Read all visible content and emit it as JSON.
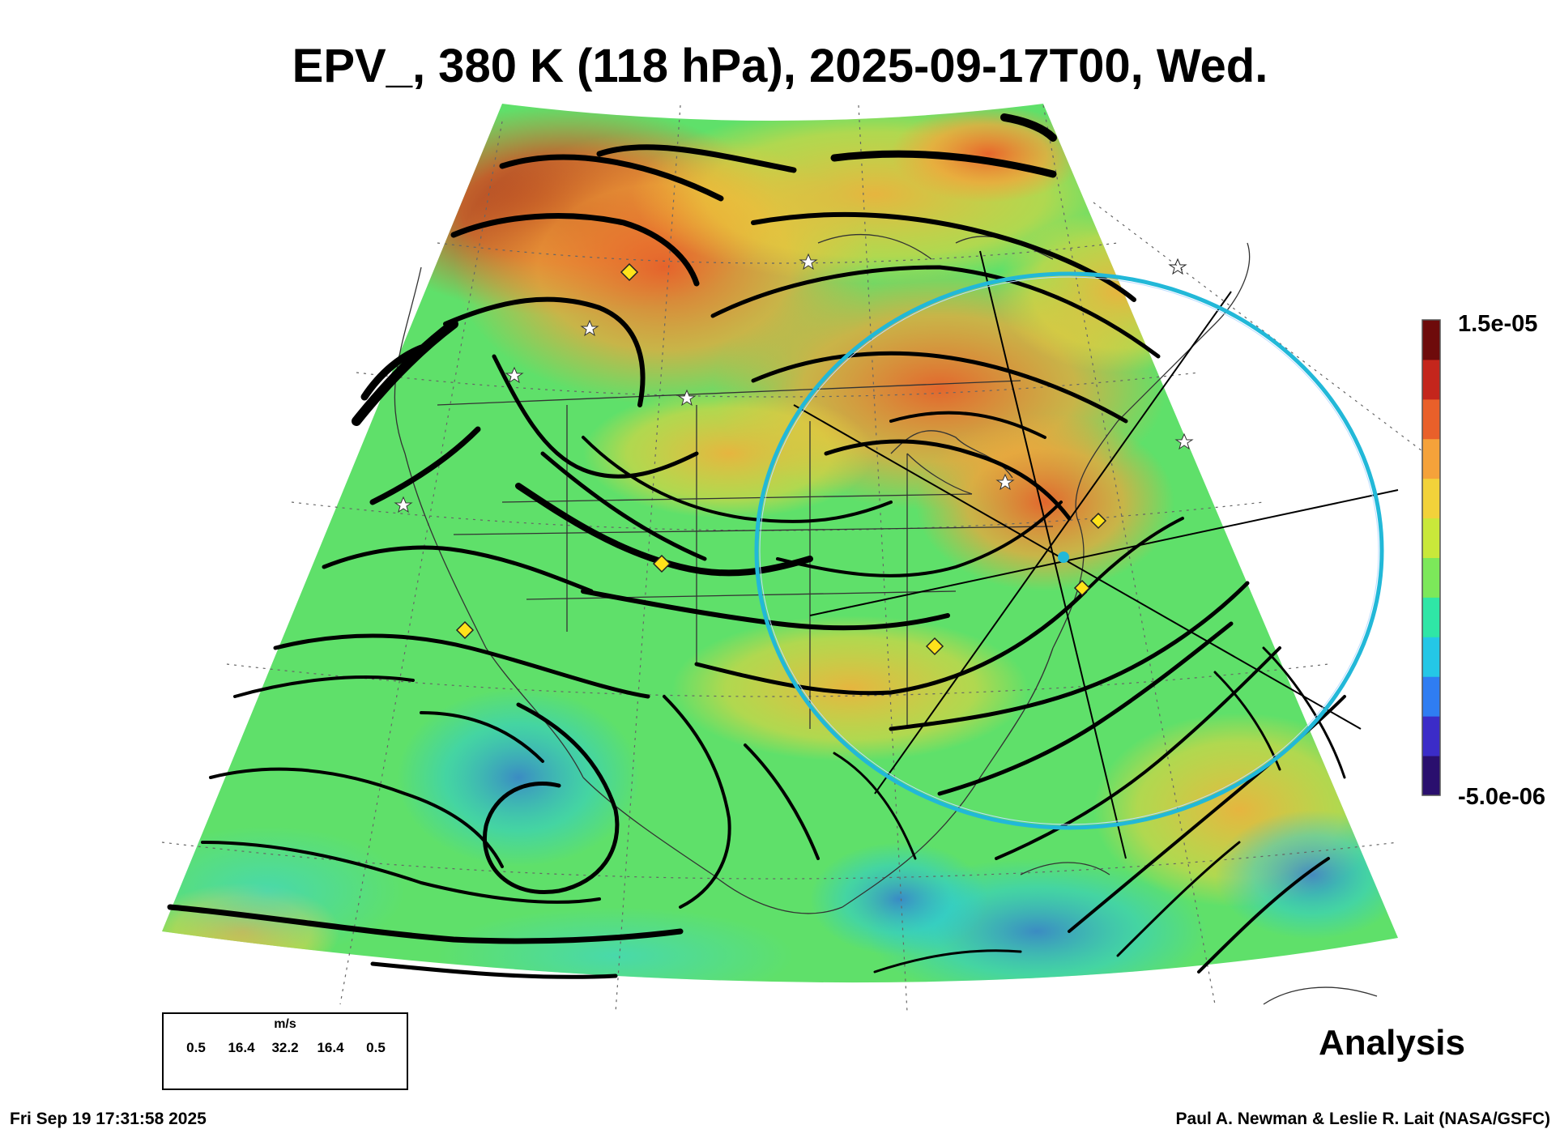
{
  "title": "EPV_, 380 K (118 hPa), 2025-09-17T00, Wed.",
  "colorbar": {
    "max_label": "1.5e-05",
    "min_label": "-5.0e-06",
    "colors": [
      "#2a0f6e",
      "#3b2cc8",
      "#2f7df2",
      "#24c7e6",
      "#2fe6a6",
      "#7ce85a",
      "#c9e83a",
      "#f2d23a",
      "#f5a23a",
      "#e9602a",
      "#c4261c",
      "#6e0b0b"
    ]
  },
  "legend": {
    "unit": "m/s",
    "ticks": [
      "0.5",
      "16.4",
      "32.2",
      "16.4",
      "0.5"
    ]
  },
  "analysis_label": "Analysis",
  "footer": {
    "timestamp": "Fri Sep 19 17:31:58 2025",
    "credit": "Paul A. Newman & Leslie R. Lait (NASA/GSFC)"
  },
  "field_colors": {
    "background_green": "#5fe06a",
    "warm_orange": "#f29a3a",
    "hot_red": "#c9331f",
    "cool_blue": "#2f6fe0",
    "ring_cyan": "#22b8d8",
    "marker_yellow": "#ffe21a"
  }
}
